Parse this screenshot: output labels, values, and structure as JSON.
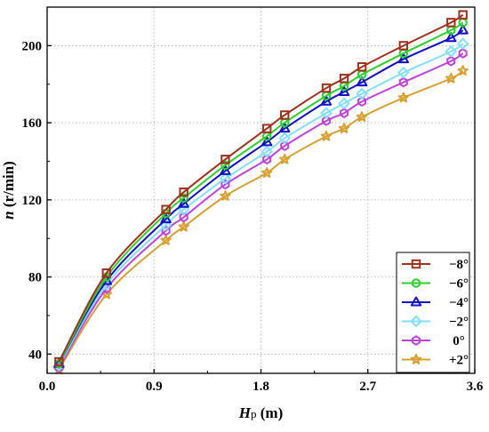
{
  "chart_data": {
    "type": "line",
    "title": "",
    "xlabel": {
      "main": "H",
      "sub": "p",
      "unit": " (m)"
    },
    "ylabel": {
      "main": "n",
      "unit": " (r/min)"
    },
    "xlim": [
      0.0,
      3.6
    ],
    "ylim": [
      30,
      220
    ],
    "xticks": [
      0.0,
      0.9,
      1.8,
      2.7,
      3.6
    ],
    "xtick_labels": [
      "0.0",
      "0.9",
      "1.8",
      "2.7",
      "3.6"
    ],
    "yticks": [
      40,
      80,
      120,
      160,
      200
    ],
    "ytick_labels": [
      "40",
      "80",
      "120",
      "160",
      "200"
    ],
    "grid": true,
    "legend_position": "bottom-right",
    "x": [
      0.1,
      0.5,
      1.0,
      1.15,
      1.5,
      1.85,
      2.0,
      2.35,
      2.5,
      2.65,
      3.0,
      3.4,
      3.5
    ],
    "series": [
      {
        "name": "−8°",
        "color": "#a0301c",
        "marker": "square",
        "values": [
          36,
          82,
          115,
          124,
          141,
          157,
          164,
          178,
          183,
          189,
          200,
          212,
          216
        ]
      },
      {
        "name": "−6°",
        "color": "#2ad22a",
        "marker": "circle",
        "values": [
          35,
          80,
          113,
          121,
          138,
          153,
          160,
          174,
          179,
          185,
          196,
          208,
          212
        ]
      },
      {
        "name": "−4°",
        "color": "#1010c8",
        "marker": "triangle",
        "values": [
          35,
          78,
          110,
          118,
          135,
          150,
          157,
          171,
          176,
          181,
          193,
          204,
          208
        ]
      },
      {
        "name": "−2°",
        "color": "#80e0ff",
        "marker": "diamond",
        "values": [
          34,
          76,
          107,
          115,
          131,
          145,
          152,
          165,
          170,
          175,
          186,
          197,
          201
        ]
      },
      {
        "name": "0°",
        "color": "#c040e0",
        "marker": "hexagon",
        "values": [
          33,
          74,
          104,
          111,
          128,
          141,
          148,
          161,
          165,
          171,
          181,
          192,
          196
        ]
      },
      {
        "name": "+2°",
        "color": "#d8a030",
        "marker": "star",
        "values": [
          32,
          71,
          99,
          106,
          122,
          134,
          141,
          153,
          157,
          163,
          173,
          183,
          187
        ]
      }
    ]
  }
}
